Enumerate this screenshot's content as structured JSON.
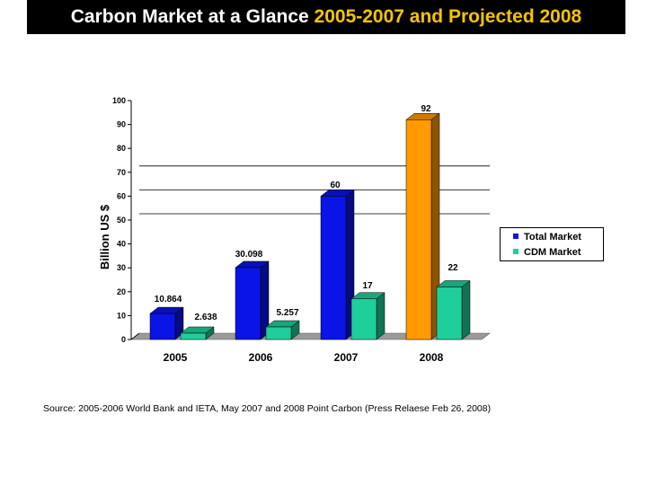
{
  "title": {
    "prefix": "Carbon Market at a Glance",
    "highlight": "2005-2007 and Projected 2008"
  },
  "source_note": "Source: 2005-2006 World Bank and IETA, May 2007 and 2008 Point Carbon (Press Relaese Feb 26, 2008)",
  "colors": {
    "title_bg": "#000000",
    "title_highlight": "#f5c400",
    "total_market": "#0a14e6",
    "total_market_projected": "#ff9a00",
    "cdm_market": "#1ecf9b"
  },
  "chart_data": {
    "type": "bar",
    "title": "",
    "xlabel": "",
    "ylabel": "Billion US $",
    "ylim": [
      0,
      100
    ],
    "yticks": [
      "0",
      "10",
      "20",
      "30",
      "40",
      "50",
      "60",
      "70",
      "80",
      "90",
      "100"
    ],
    "categories": [
      "2005",
      "2006",
      "2007",
      "2008"
    ],
    "series": [
      {
        "name": "Total Market",
        "values": [
          10.864,
          30.098,
          60,
          92
        ],
        "labels": [
          "10.864",
          "30.098",
          "60",
          "92"
        ],
        "color": "#0a14e6",
        "projected_color": "#ff9a00",
        "projected_index": 3
      },
      {
        "name": "CDM Market",
        "values": [
          2.638,
          5.257,
          17,
          22
        ],
        "labels": [
          "2.638",
          "5.257",
          "17",
          "22"
        ],
        "color": "#1ecf9b"
      }
    ],
    "legend_position": "right",
    "grid": "horizontal"
  }
}
